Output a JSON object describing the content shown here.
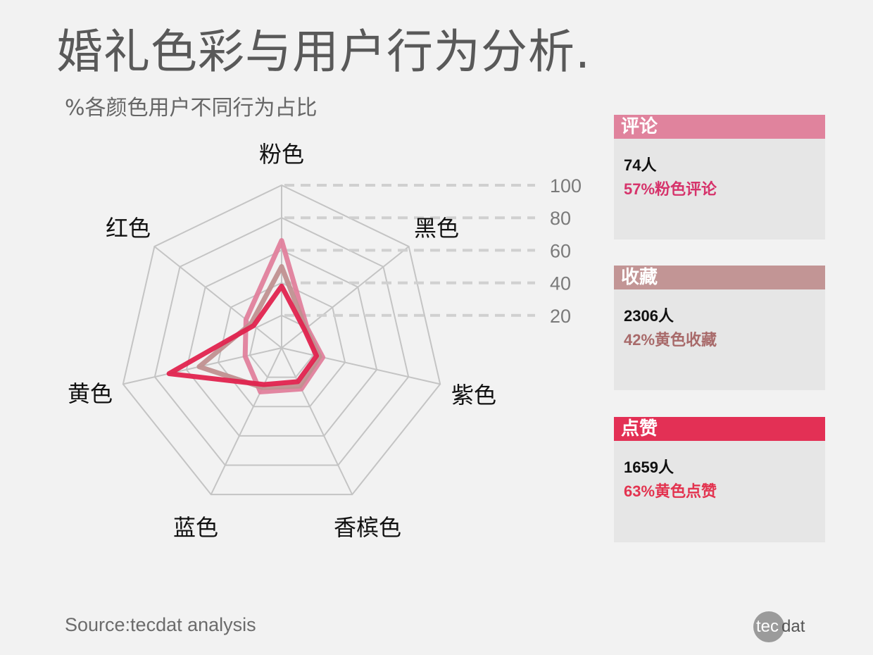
{
  "header": {
    "title": "婚礼色彩与用户行为分析.",
    "subtitle": "%各颜色用户不同行为占比"
  },
  "chart_data": {
    "type": "radar",
    "title": "婚礼色彩与用户行为分析",
    "subtitle": "%各颜色用户不同行为占比",
    "categories": [
      "粉色",
      "黑色",
      "紫色",
      "香槟色",
      "蓝色",
      "黄色",
      "红色"
    ],
    "scale_ticks": [
      20,
      40,
      60,
      80,
      100
    ],
    "range": [
      0,
      100
    ],
    "grid": true,
    "series": [
      {
        "name": "评论",
        "color": "#e07f9c",
        "values": [
          66,
          20,
          26,
          28,
          30,
          23,
          28
        ]
      },
      {
        "name": "收藏",
        "color": "#c09090",
        "values": [
          50,
          19,
          24,
          26,
          27,
          52,
          24
        ]
      },
      {
        "name": "点赞",
        "color": "#e0234e",
        "values": [
          38,
          18,
          22,
          23,
          25,
          71,
          22
        ]
      }
    ]
  },
  "cards": [
    {
      "title": "评论",
      "header_color": "#e0839d",
      "count": "74人",
      "detail": "57%粉色评论",
      "detail_color": "#d6336b"
    },
    {
      "title": "收藏",
      "header_color": "#c29595",
      "count": "2306人",
      "detail": "42%黄色收藏",
      "detail_color": "#a86a6a"
    },
    {
      "title": "点赞",
      "header_color": "#e33055",
      "count": "1659人",
      "detail": "63%黄色点赞",
      "detail_color": "#e3334f"
    }
  ],
  "footer": {
    "source": "Source:tecdat analysis",
    "logo_left": "tec",
    "logo_right": "dat"
  }
}
